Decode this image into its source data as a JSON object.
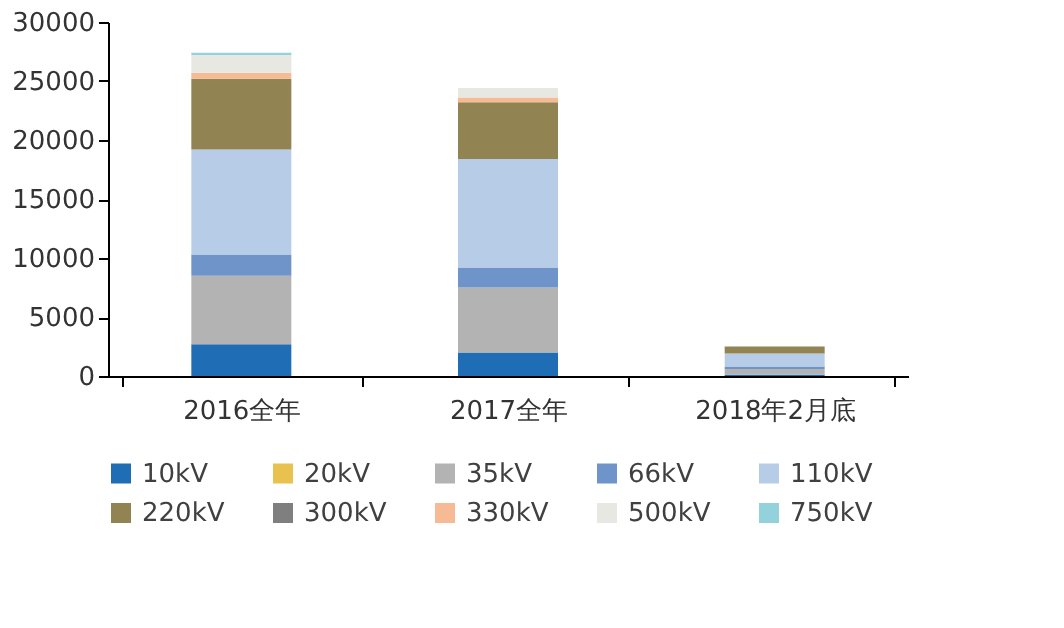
{
  "chart_data": {
    "type": "bar",
    "stacked": true,
    "categories": [
      "2016全年",
      "2017全年",
      "2018年2月底"
    ],
    "series": [
      {
        "name": "10kV",
        "color": "#1f6db5",
        "values": [
          2700,
          2000,
          100
        ]
      },
      {
        "name": "20kV",
        "color": "#e8c14e",
        "values": [
          0,
          0,
          0
        ]
      },
      {
        "name": "35kV",
        "color": "#b3b3b3",
        "values": [
          5800,
          5500,
          500
        ]
      },
      {
        "name": "66kV",
        "color": "#6f94c9",
        "values": [
          1800,
          1700,
          200
        ]
      },
      {
        "name": "110kV",
        "color": "#b7cce6",
        "values": [
          8900,
          9200,
          1100
        ]
      },
      {
        "name": "220kV",
        "color": "#918352",
        "values": [
          6000,
          4800,
          600
        ]
      },
      {
        "name": "300kV",
        "color": "#7f7f7f",
        "values": [
          0,
          0,
          0
        ]
      },
      {
        "name": "330kV",
        "color": "#f6bb95",
        "values": [
          500,
          400,
          0
        ]
      },
      {
        "name": "500kV",
        "color": "#e7e8e1",
        "values": [
          1500,
          800,
          null
        ]
      },
      {
        "name": "750kV",
        "color": "#93d1dd",
        "values": [
          200,
          0,
          0
        ]
      }
    ],
    "ylim": [
      0,
      30000
    ],
    "yticks": [
      0,
      5000,
      10000,
      15000,
      20000,
      25000,
      30000
    ],
    "grid": false,
    "legend": "bottom"
  }
}
